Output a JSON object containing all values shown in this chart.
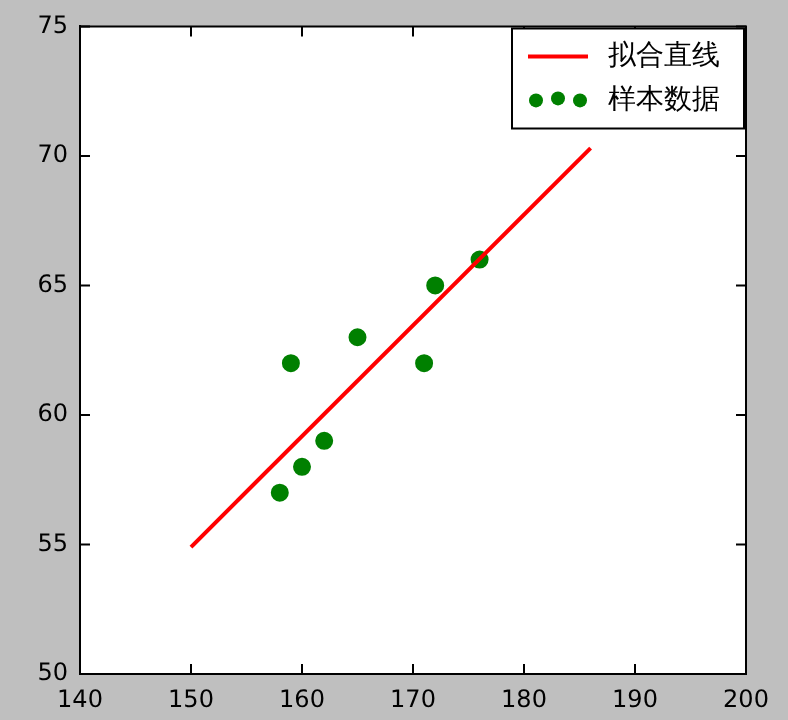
{
  "chart_data": {
    "type": "scatter",
    "xlim": [
      140,
      200
    ],
    "xticks": [
      140,
      150,
      160,
      170,
      180,
      190,
      200
    ],
    "ylim": [
      50,
      75
    ],
    "yticks": [
      50,
      55,
      60,
      65,
      70,
      75
    ],
    "grid": false,
    "legend": "top right",
    "series": [
      {
        "name": "拟合直线",
        "type": "line",
        "color": "#ff0000",
        "marker": "none",
        "x": [
          150,
          186
        ],
        "values": [
          54.9,
          70.3
        ]
      },
      {
        "name": "样本数据",
        "color": "#008000",
        "marker": "circle",
        "x": [
          158,
          159,
          160,
          162,
          165,
          171,
          172,
          176
        ],
        "values": [
          57,
          62,
          58,
          59,
          63,
          62,
          65,
          66
        ]
      }
    ]
  }
}
